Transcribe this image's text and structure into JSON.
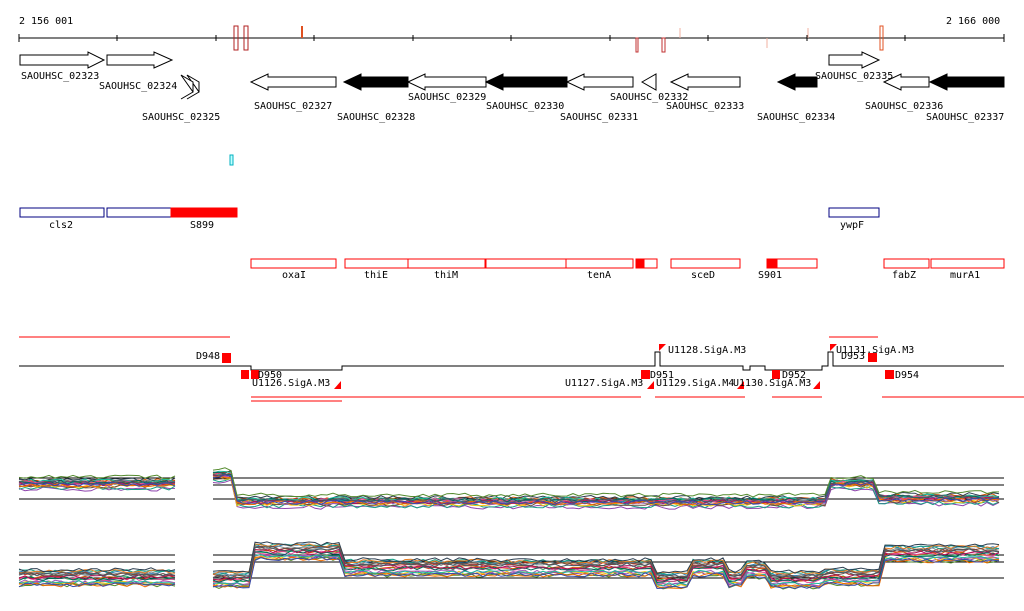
{
  "ruler": {
    "start_label": "2 156 001",
    "end_label": "2 166 000"
  },
  "genes": [
    {
      "id": "SAOUHSC_02323",
      "strand": "+",
      "fill": "white"
    },
    {
      "id": "SAOUHSC_02324",
      "strand": "+",
      "fill": "white"
    },
    {
      "id": "SAOUHSC_02325",
      "strand": "-",
      "fill": "white"
    },
    {
      "id": "SAOUHSC_02327",
      "strand": "-",
      "fill": "white"
    },
    {
      "id": "SAOUHSC_02328",
      "strand": "-",
      "fill": "black"
    },
    {
      "id": "SAOUHSC_02329",
      "strand": "-",
      "fill": "white"
    },
    {
      "id": "SAOUHSC_02330",
      "strand": "-",
      "fill": "black"
    },
    {
      "id": "SAOUHSC_02331",
      "strand": "-",
      "fill": "white"
    },
    {
      "id": "SAOUHSC_02332",
      "strand": "-",
      "fill": "white"
    },
    {
      "id": "SAOUHSC_02333",
      "strand": "-",
      "fill": "white"
    },
    {
      "id": "SAOUHSC_02334",
      "strand": "-",
      "fill": "black"
    },
    {
      "id": "SAOUHSC_02335",
      "strand": "+",
      "fill": "white"
    },
    {
      "id": "SAOUHSC_02336",
      "strand": "-",
      "fill": "white"
    },
    {
      "id": "SAOUHSC_02337",
      "strand": "-",
      "fill": "black"
    }
  ],
  "fwd_operons": [
    {
      "label": "cls2",
      "color": "blue"
    },
    {
      "label": "",
      "color": "blue"
    },
    {
      "label": "S899",
      "color": "red",
      "filled": true
    },
    {
      "label": "ywpF",
      "color": "blue"
    }
  ],
  "rev_operons": [
    {
      "label": "oxaI"
    },
    {
      "label": "thiE"
    },
    {
      "label": "thiM"
    },
    {
      "label": ""
    },
    {
      "label": "tenA"
    },
    {
      "label": ""
    },
    {
      "label": "sceD"
    },
    {
      "label": "S901"
    },
    {
      "label": "fabZ"
    },
    {
      "label": "murA1"
    }
  ],
  "promoters": [
    {
      "label": "U1128.SigA.M3"
    },
    {
      "label": "U1131.SigA.M3"
    },
    {
      "label": "U1126.SigA.M3"
    },
    {
      "label": "U1127.SigA.M3"
    },
    {
      "label": "U1129.SigA.M4"
    },
    {
      "label": "U1130.SigA.M3"
    }
  ],
  "terminators": [
    {
      "label": "D948"
    },
    {
      "label": "D950"
    },
    {
      "label": "D951"
    },
    {
      "label": "D952"
    },
    {
      "label": "D953"
    },
    {
      "label": "D954"
    }
  ],
  "colors": {
    "feature_red": "#ff0000",
    "operon_blue": "#000080",
    "tick_red": "#e05020",
    "highlight_cyan": "#00c0c0"
  }
}
